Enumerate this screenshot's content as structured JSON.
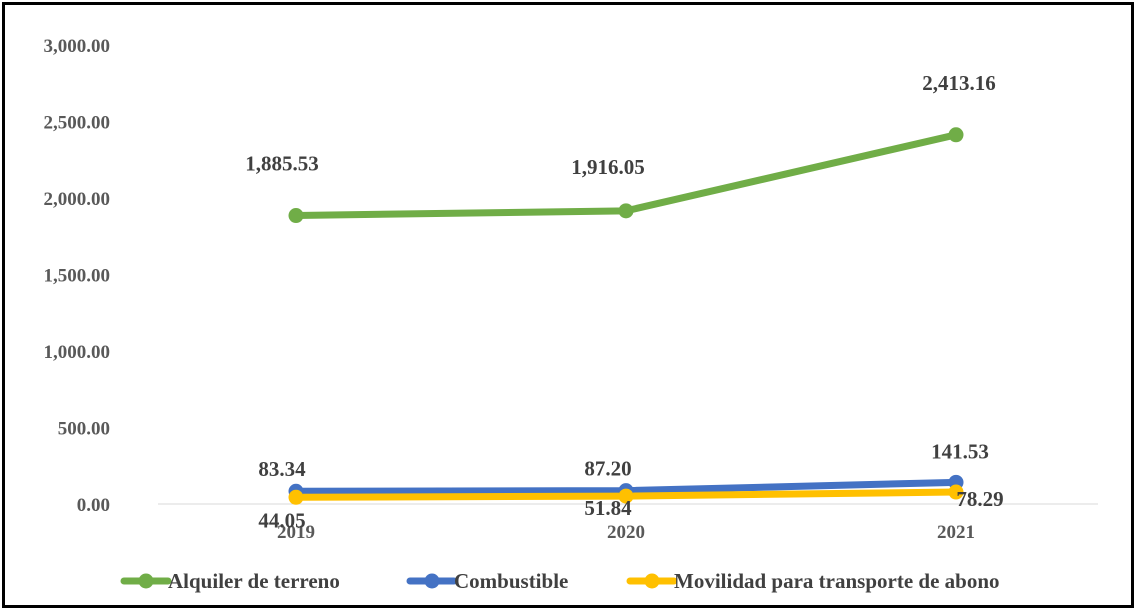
{
  "chart_data": {
    "type": "line",
    "categories": [
      "2019",
      "2020",
      "2021"
    ],
    "ylim": [
      0,
      3000
    ],
    "yticks": [
      "0.00",
      "500.00",
      "1,000.00",
      "1,500.00",
      "2,000.00",
      "2,500.00",
      "3,000.00"
    ],
    "ytick_values": [
      0,
      500,
      1000,
      1500,
      2000,
      2500,
      3000
    ],
    "grid": false,
    "legend_position": "bottom",
    "series": [
      {
        "name": "Alquiler de terreno",
        "color": "#70AD47",
        "values": [
          1885.53,
          1916.05,
          2413.16
        ],
        "labels": [
          "1,885.53",
          "1,916.05",
          "2,413.16"
        ]
      },
      {
        "name": "Combustible",
        "color": "#4472C4",
        "values": [
          83.34,
          87.2,
          141.53
        ],
        "labels": [
          "83.34",
          "87.20",
          "141.53"
        ]
      },
      {
        "name": "Movilidad para transporte de abono",
        "color": "#FFC000",
        "values": [
          44.05,
          51.84,
          78.29
        ],
        "labels": [
          "44.05",
          "51.84",
          "78.29"
        ]
      }
    ]
  }
}
